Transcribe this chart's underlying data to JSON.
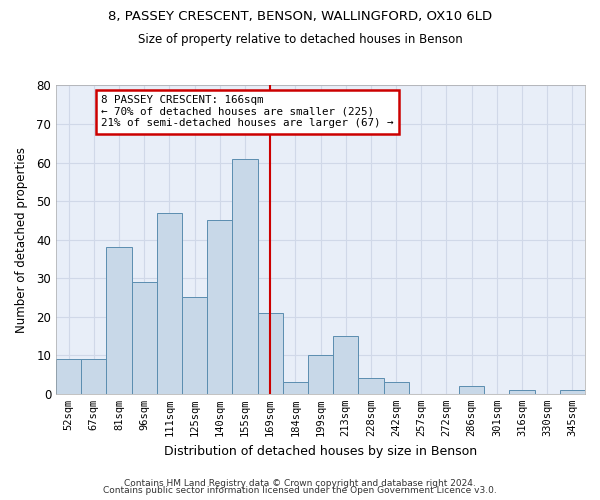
{
  "title1": "8, PASSEY CRESCENT, BENSON, WALLINGFORD, OX10 6LD",
  "title2": "Size of property relative to detached houses in Benson",
  "xlabel": "Distribution of detached houses by size in Benson",
  "ylabel": "Number of detached properties",
  "categories": [
    "52sqm",
    "67sqm",
    "81sqm",
    "96sqm",
    "111sqm",
    "125sqm",
    "140sqm",
    "155sqm",
    "169sqm",
    "184sqm",
    "199sqm",
    "213sqm",
    "228sqm",
    "242sqm",
    "257sqm",
    "272sqm",
    "286sqm",
    "301sqm",
    "316sqm",
    "330sqm",
    "345sqm"
  ],
  "values": [
    9,
    9,
    38,
    29,
    47,
    25,
    45,
    61,
    21,
    3,
    10,
    15,
    4,
    3,
    0,
    0,
    2,
    0,
    1,
    0,
    1
  ],
  "bar_color": "#c8d8e8",
  "bar_edge_color": "#5b8db0",
  "vline_x": 8,
  "vline_color": "#cc0000",
  "annotation_line1": "8 PASSEY CRESCENT: 166sqm",
  "annotation_line2": "← 70% of detached houses are smaller (225)",
  "annotation_line3": "21% of semi-detached houses are larger (67) →",
  "annotation_box_color": "#cc0000",
  "ylim": [
    0,
    80
  ],
  "yticks": [
    0,
    10,
    20,
    30,
    40,
    50,
    60,
    70,
    80
  ],
  "grid_color": "#d0d8e8",
  "bg_color": "#e8eef8",
  "footer1": "Contains HM Land Registry data © Crown copyright and database right 2024.",
  "footer2": "Contains public sector information licensed under the Open Government Licence v3.0."
}
